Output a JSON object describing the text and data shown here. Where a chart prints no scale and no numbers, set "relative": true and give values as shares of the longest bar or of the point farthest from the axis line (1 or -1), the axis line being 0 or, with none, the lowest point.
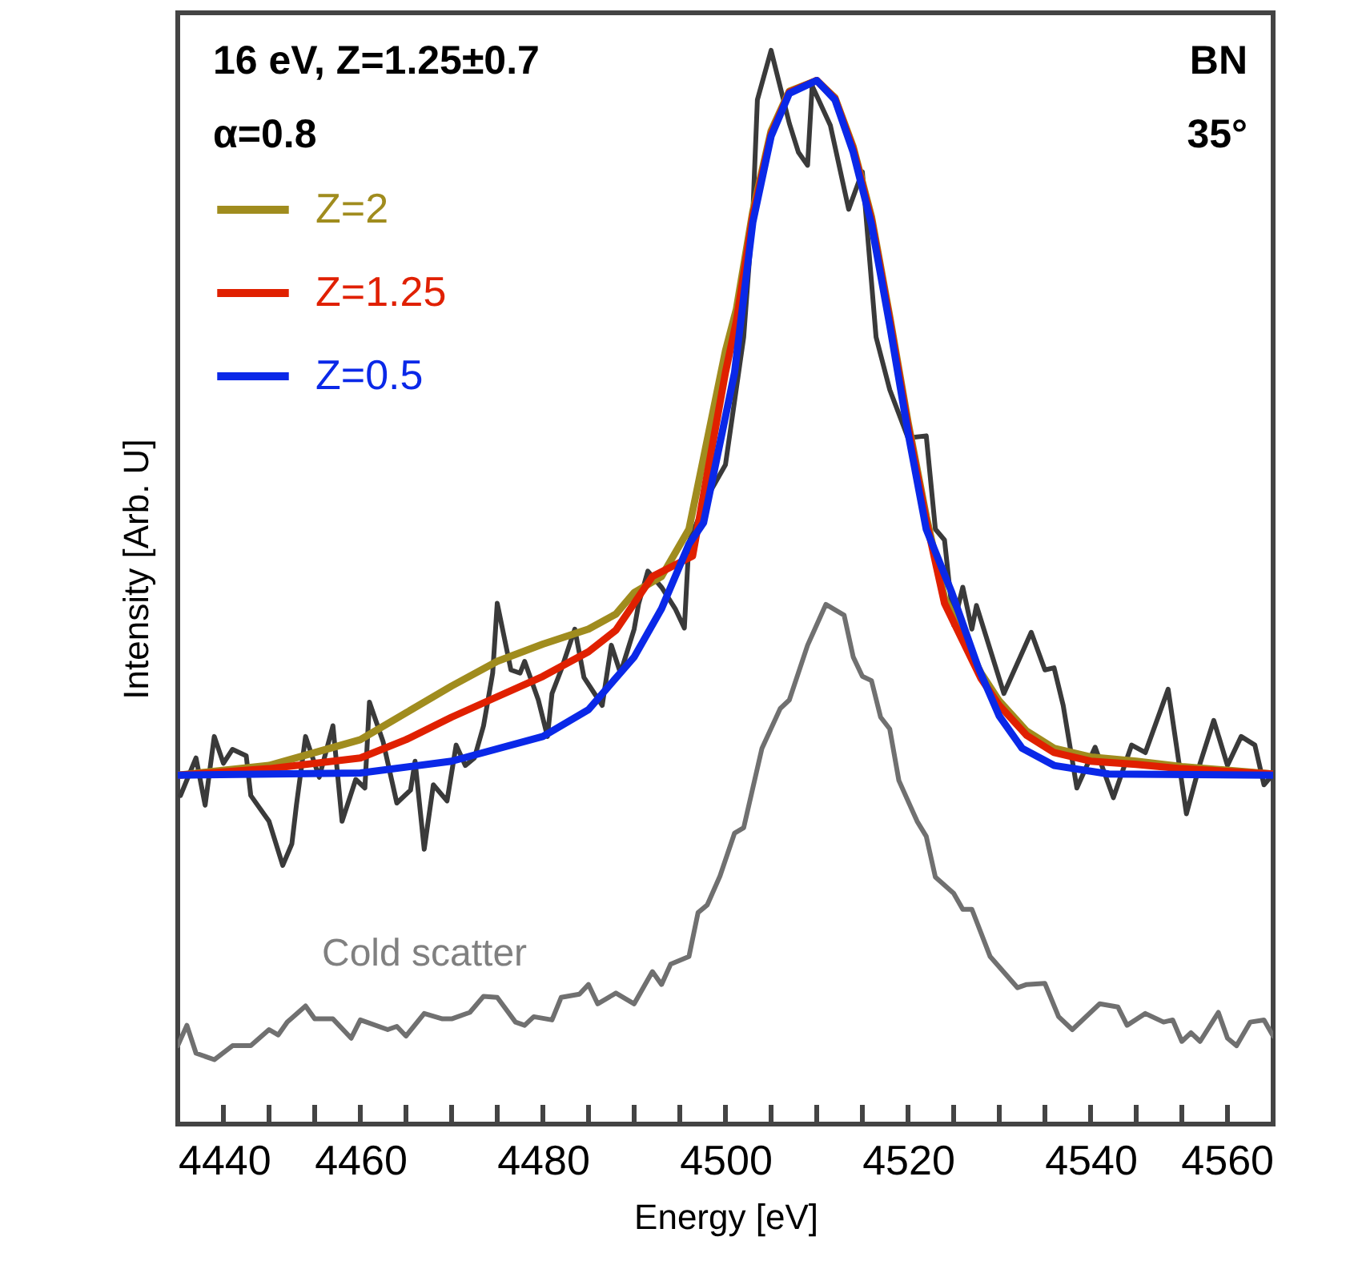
{
  "chart_data": {
    "type": "line",
    "xlabel": "Energy [eV]",
    "ylabel": "Intensity [Arb. U]",
    "relative": true,
    "legend": "top left",
    "line_style": "solid",
    "xlim": [
      4440,
      4560
    ],
    "xticks": [
      4440,
      {
        "value": 4445,
        "label": null
      },
      {
        "value": 4450,
        "label": null
      },
      {
        "value": 4455,
        "label": null
      },
      4460,
      {
        "value": 4465,
        "label": null
      },
      {
        "value": 4470,
        "label": null
      },
      {
        "value": 4475,
        "label": null
      },
      4480,
      {
        "value": 4485,
        "label": null
      },
      {
        "value": 4490,
        "label": null
      },
      {
        "value": 4495,
        "label": null
      },
      4500,
      {
        "value": 4505,
        "label": null
      },
      {
        "value": 4510,
        "label": null
      },
      {
        "value": 4515,
        "label": null
      },
      4520,
      {
        "value": 4525,
        "label": null
      },
      {
        "value": 4530,
        "label": null
      },
      {
        "value": 4535,
        "label": null
      },
      4540,
      {
        "value": 4545,
        "label": null
      },
      {
        "value": 4550,
        "label": null
      },
      {
        "value": 4555,
        "label": null
      },
      4560
    ],
    "annotations": [
      "16 eV, Z=1.25±0.7",
      "α=0.8",
      "BN",
      "35°",
      "Cold scatter"
    ],
    "series": [
      {
        "color": "#3a3a3a",
        "x": [
          4440.3,
          4442,
          4443,
          4444,
          4445,
          4446,
          4447.5,
          4448,
          4450,
          4451.5,
          4452.5,
          4453,
          4454,
          4455.5,
          4457,
          4458,
          4459.5,
          4460.5,
          4461,
          4462.5,
          4464,
          4465.5,
          4466,
          4467,
          4468,
          4469.5,
          4470.5,
          4471.5,
          4472.5,
          4473.5,
          4474.5,
          4475,
          4476.5,
          4477.5,
          4478,
          4479.5,
          4480.5,
          4481,
          4482,
          4483.5,
          4484.5,
          4486.5,
          4487.5,
          4488.5,
          4490,
          4490.5,
          4491.5,
          4493,
          4494.5,
          4495.5,
          4496,
          4498,
          4500,
          4502,
          4503,
          4503.5,
          4505,
          4507,
          4508,
          4509,
          4509.5,
          4511.5,
          4513.5,
          4515,
          4516.5,
          4518,
          4520,
          4522,
          4523,
          4524,
          4525,
          4526,
          4527,
          4527.5,
          4530.5,
          4533.5,
          4535,
          4536,
          4537,
          4538.5,
          4540.5,
          4542.5,
          4544.5,
          4546,
          4548.5,
          4550.5,
          4552,
          4553.5,
          4555,
          4556.5,
          4558,
          4559,
          4560
        ],
        "values": [
          0.306,
          0.341,
          0.297,
          0.361,
          0.336,
          0.349,
          0.343,
          0.306,
          0.282,
          0.241,
          0.261,
          0.297,
          0.361,
          0.323,
          0.371,
          0.282,
          0.321,
          0.313,
          0.393,
          0.356,
          0.299,
          0.311,
          0.338,
          0.256,
          0.316,
          0.301,
          0.353,
          0.334,
          0.341,
          0.371,
          0.42,
          0.485,
          0.423,
          0.42,
          0.431,
          0.395,
          0.361,
          0.401,
          0.423,
          0.461,
          0.416,
          0.39,
          0.446,
          0.42,
          0.461,
          0.485,
          0.515,
          0.5,
          0.48,
          0.462,
          0.542,
          0.584,
          0.614,
          0.733,
          0.848,
          0.954,
          1,
          0.932,
          0.905,
          0.893,
          0.967,
          0.93,
          0.852,
          0.887,
          0.733,
          0.684,
          0.639,
          0.641,
          0.554,
          0.544,
          0.465,
          0.5,
          0.461,
          0.483,
          0.401,
          0.458,
          0.423,
          0.425,
          0.39,
          0.313,
          0.351,
          0.304,
          0.353,
          0.346,
          0.405,
          0.289,
          0.336,
          0.376,
          0.334,
          0.361,
          0.353,
          0.316,
          0.326
        ]
      },
      {
        "color": "#707070",
        "x": [
          4440,
          4441,
          4442,
          4444,
          4446,
          4448,
          4450,
          4451,
          4452,
          4454,
          4455,
          4457,
          4459,
          4460,
          4463,
          4464,
          4465,
          4467,
          4469,
          4470,
          4472,
          4473.5,
          4475,
          4477,
          4478,
          4479,
          4481,
          4482,
          4484,
          4485,
          4486,
          4488,
          4490,
          4492,
          4493,
          4494,
          4496,
          4497,
          4498,
          4499.4,
          4501,
          4502,
          4504,
          4506,
          4507,
          4509,
          4511,
          4513,
          4514,
          4515,
          4516,
          4517,
          4518,
          4519,
          4521,
          4522,
          4523,
          4525,
          4526,
          4527,
          4529,
          4532,
          4533,
          4535,
          4536.5,
          4538,
          4541,
          4543,
          4544,
          4546,
          4548,
          4549,
          4550,
          4551,
          4552,
          4554,
          4555,
          4556,
          4557.5,
          4559,
          4560
        ],
        "values": [
          0.073,
          0.092,
          0.066,
          0.06,
          0.073,
          0.073,
          0.088,
          0.083,
          0.095,
          0.11,
          0.098,
          0.098,
          0.08,
          0.097,
          0.088,
          0.091,
          0.082,
          0.103,
          0.098,
          0.098,
          0.104,
          0.119,
          0.118,
          0.095,
          0.092,
          0.1,
          0.097,
          0.118,
          0.121,
          0.13,
          0.112,
          0.122,
          0.112,
          0.142,
          0.13,
          0.149,
          0.156,
          0.197,
          0.204,
          0.231,
          0.271,
          0.276,
          0.35,
          0.387,
          0.395,
          0.446,
          0.484,
          0.474,
          0.435,
          0.417,
          0.413,
          0.379,
          0.368,
          0.32,
          0.282,
          0.268,
          0.23,
          0.215,
          0.2,
          0.2,
          0.156,
          0.127,
          0.13,
          0.131,
          0.1,
          0.088,
          0.112,
          0.109,
          0.092,
          0.103,
          0.095,
          0.097,
          0.077,
          0.085,
          0.077,
          0.104,
          0.08,
          0.073,
          0.095,
          0.097,
          0.082
        ]
      },
      {
        "name": "Z=2",
        "color": "#a08c1e",
        "x": [
          4440,
          4450,
          4460,
          4465,
          4470,
          4475,
          4480,
          4485,
          4488,
          4490,
          4493,
          4496,
          4500,
          4501.2,
          4503,
          4505,
          4507,
          4510,
          4512,
          4514,
          4516,
          4518,
          4520,
          4522,
          4524,
          4526,
          4528,
          4530,
          4533,
          4536,
          4540,
          4545,
          4550,
          4560
        ],
        "values": [
          0.325,
          0.334,
          0.358,
          0.383,
          0.408,
          0.431,
          0.447,
          0.461,
          0.475,
          0.495,
          0.51,
          0.554,
          0.72,
          0.759,
          0.85,
          0.925,
          0.962,
          0.972,
          0.956,
          0.91,
          0.845,
          0.752,
          0.654,
          0.566,
          0.49,
          0.455,
          0.42,
          0.394,
          0.366,
          0.35,
          0.342,
          0.338,
          0.333,
          0.326
        ]
      },
      {
        "name": "Z=1.25",
        "color": "#e02000",
        "x": [
          4440,
          4450,
          4460,
          4465,
          4470,
          4475,
          4480,
          4485,
          4488,
          4490,
          4492,
          4496.4,
          4500,
          4501.2,
          4503,
          4505,
          4507,
          4510,
          4512,
          4514,
          4516,
          4518,
          4520,
          4522,
          4524,
          4526,
          4528,
          4530,
          4533,
          4536,
          4540,
          4545,
          4550,
          4560
        ],
        "values": [
          0.325,
          0.331,
          0.341,
          0.358,
          0.379,
          0.398,
          0.417,
          0.44,
          0.46,
          0.485,
          0.51,
          0.529,
          0.7,
          0.748,
          0.846,
          0.922,
          0.961,
          0.972,
          0.955,
          0.908,
          0.842,
          0.749,
          0.65,
          0.562,
          0.485,
          0.45,
          0.415,
          0.39,
          0.362,
          0.346,
          0.338,
          0.335,
          0.331,
          0.326
        ]
      },
      {
        "name": "Z=0.5",
        "color": "#0a28e8",
        "x": [
          4440,
          4460,
          4470,
          4480,
          4485,
          4490,
          4493,
          4496,
          4497.6,
          4501,
          4503,
          4505,
          4507,
          4510,
          4512,
          4514,
          4516,
          4518,
          4520,
          4522,
          4524.8,
          4527.7,
          4530,
          4532.5,
          4536,
          4542,
          4560
        ],
        "values": [
          0.325,
          0.327,
          0.338,
          0.361,
          0.386,
          0.435,
          0.48,
          0.54,
          0.56,
          0.7,
          0.84,
          0.92,
          0.96,
          0.972,
          0.954,
          0.905,
          0.838,
          0.744,
          0.644,
          0.554,
          0.495,
          0.425,
          0.38,
          0.35,
          0.334,
          0.326,
          0.325
        ]
      }
    ]
  }
}
